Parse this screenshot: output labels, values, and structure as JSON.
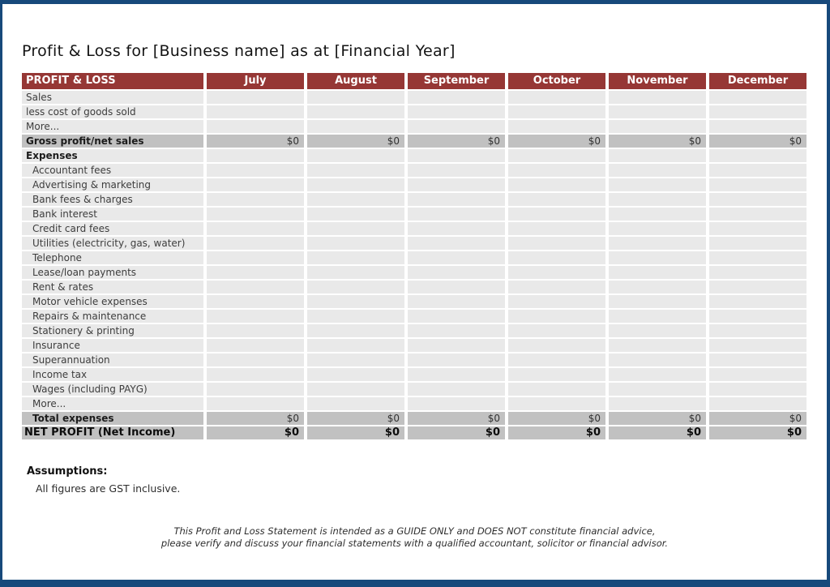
{
  "title": "Profit & Loss for [Business name] as at [Financial Year]",
  "colors": {
    "border_blue": "#17497B",
    "header_red": "#963735",
    "row_light": "#E9E9E9",
    "row_dark": "#C1C1C1",
    "header_text": "#FFFFFF"
  },
  "table": {
    "corner_label": "PROFIT & LOSS",
    "months": [
      "July",
      "August",
      "September",
      "October",
      "November",
      "December"
    ],
    "rows": [
      {
        "label": "Sales",
        "style": "item",
        "indent": 0,
        "values": [
          "",
          "",
          "",
          "",
          "",
          ""
        ]
      },
      {
        "label": "less cost of goods sold",
        "style": "item",
        "indent": 0,
        "values": [
          "",
          "",
          "",
          "",
          "",
          ""
        ]
      },
      {
        "label": "More...",
        "style": "item",
        "indent": 0,
        "values": [
          "",
          "",
          "",
          "",
          "",
          ""
        ]
      },
      {
        "label": "Gross profit/net sales",
        "style": "subtotal",
        "indent": 0,
        "values": [
          "$0",
          "$0",
          "$0",
          "$0",
          "$0",
          "$0"
        ]
      },
      {
        "label": "Expenses",
        "style": "section",
        "indent": 0,
        "values": [
          "",
          "",
          "",
          "",
          "",
          ""
        ]
      },
      {
        "label": "Accountant fees",
        "style": "item",
        "indent": 1,
        "values": [
          "",
          "",
          "",
          "",
          "",
          ""
        ]
      },
      {
        "label": "Advertising & marketing",
        "style": "item",
        "indent": 1,
        "values": [
          "",
          "",
          "",
          "",
          "",
          ""
        ]
      },
      {
        "label": "Bank fees & charges",
        "style": "item",
        "indent": 1,
        "values": [
          "",
          "",
          "",
          "",
          "",
          ""
        ]
      },
      {
        "label": "Bank interest",
        "style": "item",
        "indent": 1,
        "values": [
          "",
          "",
          "",
          "",
          "",
          ""
        ]
      },
      {
        "label": "Credit card fees",
        "style": "item",
        "indent": 1,
        "values": [
          "",
          "",
          "",
          "",
          "",
          ""
        ]
      },
      {
        "label": "Utilities (electricity, gas, water)",
        "style": "item",
        "indent": 1,
        "values": [
          "",
          "",
          "",
          "",
          "",
          ""
        ]
      },
      {
        "label": "Telephone",
        "style": "item",
        "indent": 1,
        "values": [
          "",
          "",
          "",
          "",
          "",
          ""
        ]
      },
      {
        "label": "Lease/loan payments",
        "style": "item",
        "indent": 1,
        "values": [
          "",
          "",
          "",
          "",
          "",
          ""
        ]
      },
      {
        "label": "Rent & rates",
        "style": "item",
        "indent": 1,
        "values": [
          "",
          "",
          "",
          "",
          "",
          ""
        ]
      },
      {
        "label": "Motor vehicle expenses",
        "style": "item",
        "indent": 1,
        "values": [
          "",
          "",
          "",
          "",
          "",
          ""
        ]
      },
      {
        "label": "Repairs & maintenance",
        "style": "item",
        "indent": 1,
        "values": [
          "",
          "",
          "",
          "",
          "",
          ""
        ]
      },
      {
        "label": "Stationery & printing",
        "style": "item",
        "indent": 1,
        "values": [
          "",
          "",
          "",
          "",
          "",
          ""
        ]
      },
      {
        "label": "Insurance",
        "style": "item",
        "indent": 1,
        "values": [
          "",
          "",
          "",
          "",
          "",
          ""
        ]
      },
      {
        "label": "Superannuation",
        "style": "item",
        "indent": 1,
        "values": [
          "",
          "",
          "",
          "",
          "",
          ""
        ]
      },
      {
        "label": "Income tax",
        "style": "item",
        "indent": 1,
        "values": [
          "",
          "",
          "",
          "",
          "",
          ""
        ]
      },
      {
        "label": "Wages (including PAYG)",
        "style": "item",
        "indent": 1,
        "values": [
          "",
          "",
          "",
          "",
          "",
          ""
        ]
      },
      {
        "label": "More...",
        "style": "item",
        "indent": 1,
        "values": [
          "",
          "",
          "",
          "",
          "",
          ""
        ]
      },
      {
        "label": "Total expenses",
        "style": "subtotal",
        "indent": 1,
        "values": [
          "$0",
          "$0",
          "$0",
          "$0",
          "$0",
          "$0"
        ]
      },
      {
        "label": "NET PROFIT (Net Income)",
        "style": "net",
        "indent": 0,
        "values": [
          "$0",
          "$0",
          "$0",
          "$0",
          "$0",
          "$0"
        ]
      }
    ]
  },
  "assumptions": {
    "heading": "Assumptions:",
    "note": "All figures are GST inclusive."
  },
  "disclaimer": {
    "line1": "This Profit and Loss Statement is intended as a GUIDE ONLY and DOES NOT constitute financial advice,",
    "line2": "please verify and discuss your financial statements with a qualified accountant, solicitor or financial advisor."
  }
}
